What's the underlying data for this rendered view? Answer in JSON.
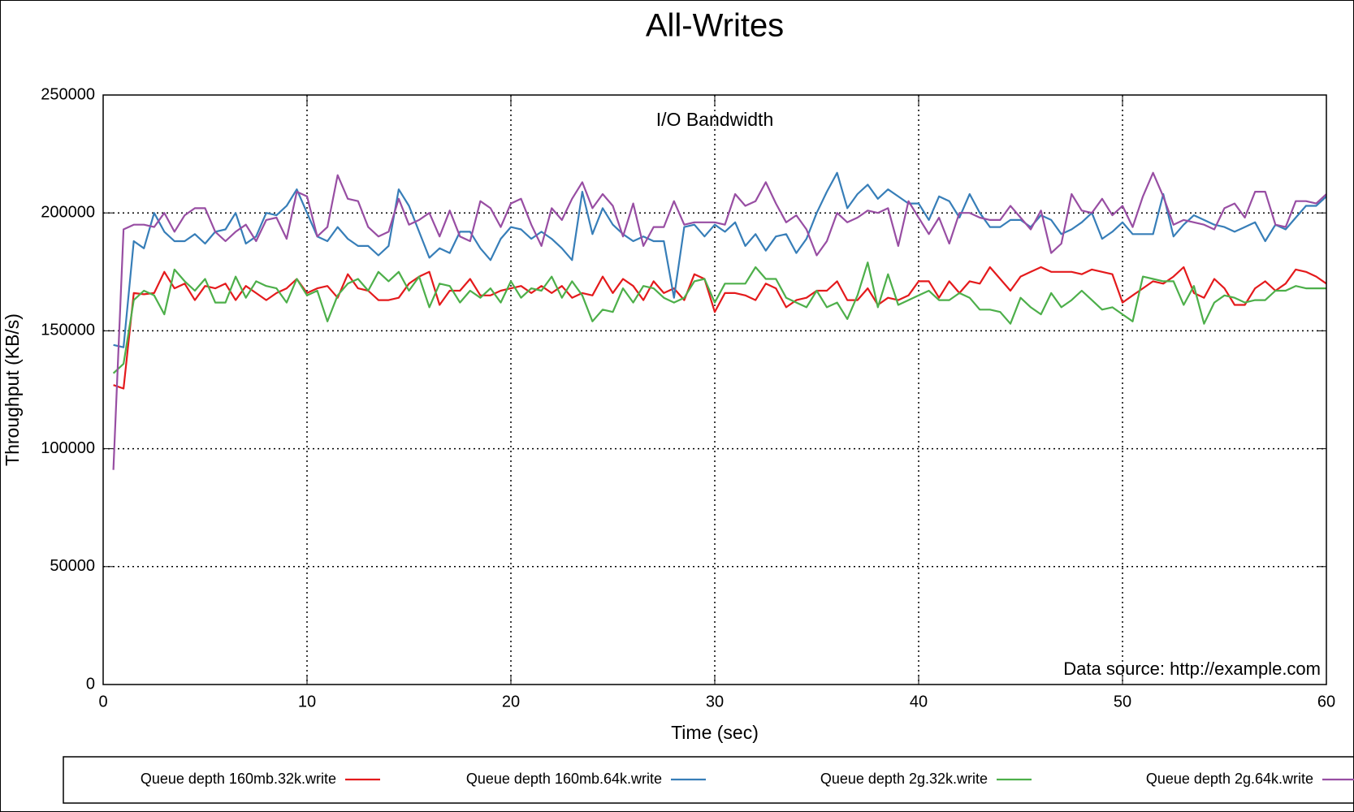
{
  "chart_data": {
    "type": "line",
    "title": "All-Writes",
    "subtitle": "I/O Bandwidth",
    "xlabel": "Time (sec)",
    "ylabel": "Throughput (KB/s)",
    "annotation": "Data source: http://example.com",
    "xlim": [
      0,
      60
    ],
    "xticks": [
      0,
      10,
      20,
      30,
      40,
      50,
      60
    ],
    "ylim": [
      0,
      250000
    ],
    "yticks": [
      0,
      50000,
      100000,
      150000,
      200000,
      250000
    ],
    "grid": true,
    "legend": "bottom",
    "x": [
      0.5,
      1,
      1.5,
      2,
      2.5,
      3,
      3.5,
      4,
      4.5,
      5,
      5.5,
      6,
      6.5,
      7,
      7.5,
      8,
      8.5,
      9,
      9.5,
      10,
      10.5,
      11,
      11.5,
      12,
      12.5,
      13,
      13.5,
      14,
      14.5,
      15,
      15.5,
      16,
      16.5,
      17,
      17.5,
      18,
      18.5,
      19,
      19.5,
      20,
      20.5,
      21,
      21.5,
      22,
      22.5,
      23,
      23.5,
      24,
      24.5,
      25,
      25.5,
      26,
      26.5,
      27,
      27.5,
      28,
      28.5,
      29,
      29.5,
      30,
      30.5,
      31,
      31.5,
      32,
      32.5,
      33,
      33.5,
      34,
      34.5,
      35,
      35.5,
      36,
      36.5,
      37,
      37.5,
      38,
      38.5,
      39,
      39.5,
      40,
      40.5,
      41,
      41.5,
      42,
      42.5,
      43,
      43.5,
      44,
      44.5,
      45,
      45.5,
      46,
      46.5,
      47,
      47.5,
      48,
      48.5,
      49,
      49.5,
      50,
      50.5,
      51,
      51.5,
      52,
      52.5,
      53,
      53.5,
      54,
      54.5,
      55,
      55.5,
      56,
      56.5,
      57,
      57.5,
      58,
      58.5,
      59,
      59.5,
      60
    ],
    "series": [
      {
        "name": "Queue depth 160mb.32k.write",
        "color": "#e41a1c",
        "values": [
          127000,
          125500,
          166000,
          165500,
          166000,
          175000,
          168000,
          170000,
          163000,
          169000,
          168000,
          170000,
          163000,
          169000,
          166000,
          163000,
          166000,
          168000,
          172000,
          166000,
          168000,
          169000,
          164000,
          174000,
          168000,
          167000,
          163000,
          163000,
          164000,
          170000,
          173000,
          175000,
          161000,
          167000,
          167000,
          172000,
          165000,
          165000,
          167000,
          168000,
          169000,
          166000,
          169000,
          166000,
          169000,
          164000,
          166000,
          165000,
          173000,
          166000,
          172000,
          169000,
          163000,
          171000,
          166000,
          168000,
          163000,
          174000,
          172000,
          158000,
          166000,
          166000,
          165000,
          163000,
          170000,
          168000,
          160000,
          163000,
          164000,
          167000,
          167000,
          171000,
          163000,
          163000,
          168000,
          161000,
          164000,
          163000,
          165000,
          171000,
          171000,
          164000,
          171000,
          166000,
          171000,
          170000,
          177000,
          172000,
          167000,
          173000,
          175000,
          177000,
          175000,
          175000,
          175000,
          174000,
          176000,
          175000,
          174000,
          162000,
          165000,
          168000,
          171000,
          170000,
          173000,
          177000,
          166000,
          164000,
          172000,
          168000,
          161000,
          161000,
          168000,
          171000,
          167000,
          170000,
          176000,
          175000,
          173000,
          170000
        ]
      },
      {
        "name": "Queue depth 160mb.64k.write",
        "color": "#377eb8",
        "values": [
          144000,
          143000,
          188000,
          185000,
          200000,
          192000,
          188000,
          188000,
          191000,
          187000,
          192000,
          193000,
          200000,
          187000,
          190000,
          200000,
          199000,
          203000,
          210000,
          200000,
          190000,
          188000,
          194000,
          189000,
          186000,
          186000,
          182000,
          186000,
          210000,
          203000,
          192000,
          181000,
          185000,
          183000,
          192000,
          192000,
          185000,
          180000,
          189000,
          194000,
          193000,
          189000,
          192000,
          189000,
          185000,
          180000,
          209000,
          191000,
          202000,
          195000,
          191000,
          188000,
          190000,
          188000,
          188000,
          164000,
          194000,
          195000,
          190000,
          195000,
          192000,
          196000,
          186000,
          191000,
          184000,
          190000,
          191000,
          183000,
          189000,
          200000,
          209000,
          217000,
          202000,
          208000,
          212000,
          206000,
          210000,
          207000,
          204000,
          204000,
          197000,
          207000,
          205000,
          198000,
          208000,
          200000,
          194000,
          194000,
          197000,
          197000,
          194000,
          199000,
          197000,
          191000,
          193000,
          196000,
          200000,
          189000,
          192000,
          196000,
          191000,
          191000,
          191000,
          208000,
          190000,
          195000,
          199000,
          197000,
          195000,
          194000,
          192000,
          194000,
          196000,
          188000,
          195000,
          193000,
          198000,
          203000,
          203000,
          207000
        ]
      },
      {
        "name": "Queue depth 2g.32k.write",
        "color": "#4daf4a",
        "values": [
          132000,
          136000,
          163000,
          167000,
          165000,
          157000,
          176000,
          171000,
          167000,
          172000,
          162000,
          162000,
          173000,
          164000,
          171000,
          169000,
          168000,
          162000,
          172000,
          165000,
          167000,
          154000,
          165000,
          170000,
          172000,
          167000,
          175000,
          171000,
          175000,
          167000,
          173000,
          160000,
          170000,
          169000,
          162000,
          167000,
          164000,
          168000,
          162000,
          171000,
          164000,
          168000,
          167000,
          173000,
          164000,
          171000,
          165000,
          154000,
          159000,
          158000,
          168000,
          162000,
          169000,
          168000,
          164000,
          162000,
          164000,
          171000,
          172000,
          162000,
          170000,
          170000,
          170000,
          177000,
          172000,
          172000,
          164000,
          162000,
          160000,
          167000,
          160000,
          162000,
          155000,
          165000,
          179000,
          160000,
          174000,
          161000,
          163000,
          165000,
          167000,
          163000,
          163000,
          166000,
          164000,
          159000,
          159000,
          158000,
          153000,
          164000,
          160000,
          157000,
          166000,
          160000,
          163000,
          167000,
          163000,
          159000,
          160000,
          157000,
          154000,
          173000,
          172000,
          171000,
          171000,
          161000,
          169000,
          153000,
          162000,
          165000,
          164000,
          162000,
          163000,
          163000,
          167000,
          167000,
          169000,
          168000,
          168000,
          168000
        ]
      },
      {
        "name": "Queue depth 2g.64k.write",
        "color": "#984ea3",
        "values": [
          91000,
          193000,
          195000,
          195000,
          194000,
          200000,
          192000,
          199000,
          202000,
          202000,
          192000,
          188000,
          192000,
          195000,
          188000,
          197000,
          198000,
          189000,
          209000,
          207000,
          190000,
          194000,
          216000,
          206000,
          205000,
          194000,
          190000,
          192000,
          206000,
          195000,
          197000,
          200000,
          190000,
          201000,
          190000,
          188000,
          205000,
          202000,
          194000,
          204000,
          206000,
          195000,
          186000,
          202000,
          197000,
          206000,
          213000,
          202000,
          208000,
          203000,
          190000,
          204000,
          186000,
          194000,
          194000,
          205000,
          195000,
          196000,
          196000,
          196000,
          195000,
          208000,
          203000,
          205000,
          213000,
          204000,
          196000,
          199000,
          193000,
          182000,
          188000,
          200000,
          196000,
          198000,
          201000,
          200000,
          202000,
          186000,
          205000,
          198000,
          191000,
          198000,
          187000,
          200000,
          200000,
          198000,
          197000,
          197000,
          203000,
          198000,
          193000,
          201000,
          183000,
          187000,
          208000,
          201000,
          200000,
          206000,
          199000,
          203000,
          194000,
          207000,
          217000,
          207000,
          195000,
          197000,
          196000,
          195000,
          193000,
          202000,
          204000,
          198000,
          209000,
          209000,
          195000,
          194000,
          205000,
          205000,
          204000,
          208000
        ]
      }
    ]
  }
}
